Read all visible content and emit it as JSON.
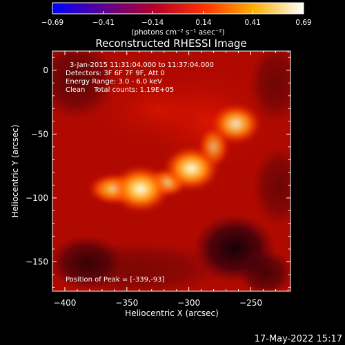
{
  "chart_data": {
    "type": "heatmap",
    "title": "Reconstructed RHESSI Image",
    "xlabel": "Heliocentric X (arcsec)",
    "ylabel": "Heliocentric Y (arcsec)",
    "xlim": [
      -410,
      -218
    ],
    "ylim": [
      -173,
      15
    ],
    "x_ticks": [
      -400,
      -350,
      -300,
      -250
    ],
    "y_ticks": [
      0,
      -50,
      -100,
      -150
    ],
    "x_tick_labels": [
      "−400",
      "−350",
      "−300",
      "−250"
    ],
    "y_tick_labels": [
      "0",
      "−50",
      "−100",
      "−150"
    ],
    "colorbar": {
      "min": -0.69,
      "max": 0.69,
      "tick_values": [
        -0.69,
        -0.41,
        -0.14,
        0.14,
        0.41,
        0.69
      ],
      "tick_labels": [
        "−0.69",
        "−0.41",
        "−0.14",
        "0.14",
        "0.41",
        "0.69"
      ],
      "unit_text": "(photons cm⁻² s⁻¹ asec⁻²)",
      "colors": [
        "#0000ff",
        "#5a0094",
        "#b0002c",
        "#ff3000",
        "#ffae00",
        "#ffffff"
      ]
    },
    "annotations": [
      "3-Jan-2015 11:31:04.000 to 11:37:04.000",
      "Detectors: 3F 6F 7F 9F, Att 0",
      "Energy Range: 3.0 - 6.0 keV",
      "Clean    Total counts: 1.19E+05",
      "Position of Peak = [-339,-93]"
    ],
    "sources": [
      {
        "x": -339,
        "y": -93,
        "amplitude": 0.69
      },
      {
        "x": -298,
        "y": -77,
        "amplitude": 0.6
      },
      {
        "x": -262,
        "y": -42,
        "amplitude": 0.45
      }
    ],
    "timestamp": "17-May-2022 15:17"
  }
}
